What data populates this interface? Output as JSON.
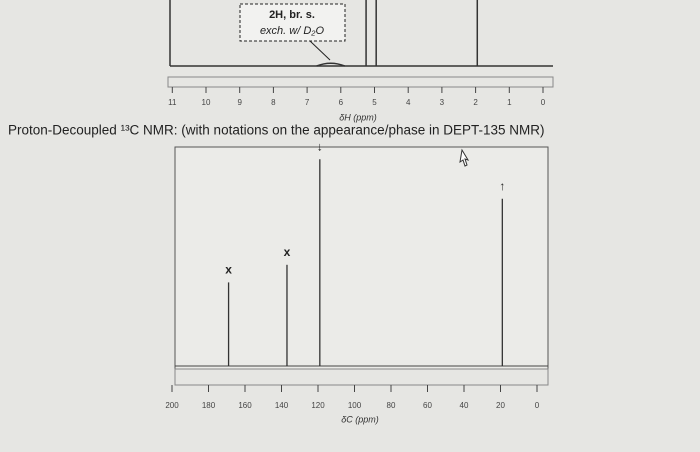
{
  "h_nmr": {
    "annotation": [
      "2H, br. s.",
      "exch. w/ D₂O"
    ],
    "xlabel": "δH (ppm)",
    "xticks": [
      11,
      10,
      9,
      8,
      7,
      6,
      5,
      4,
      3,
      2,
      1,
      0
    ],
    "peaks": [
      {
        "x": 6.3,
        "height": 8
      },
      {
        "x": 5.25,
        "height": 100
      },
      {
        "x": 4.95,
        "height": 100
      },
      {
        "x": 1.95,
        "height": 100
      }
    ]
  },
  "title": "Proton-Decoupled ¹³C NMR: (with notations on the appearance/phase in DEPT-135 NMR)",
  "c_nmr": {
    "xlabel": "δC (ppm)",
    "xticks": [
      200,
      180,
      160,
      140,
      120,
      100,
      80,
      60,
      40,
      20,
      0
    ],
    "peaks": [
      {
        "x": 169,
        "height": 38,
        "note": "x"
      },
      {
        "x": 137,
        "height": 46,
        "note": "x"
      },
      {
        "x": 119,
        "height": 94,
        "note": "↓"
      },
      {
        "x": 19,
        "height": 76,
        "note": "↑"
      }
    ]
  }
}
